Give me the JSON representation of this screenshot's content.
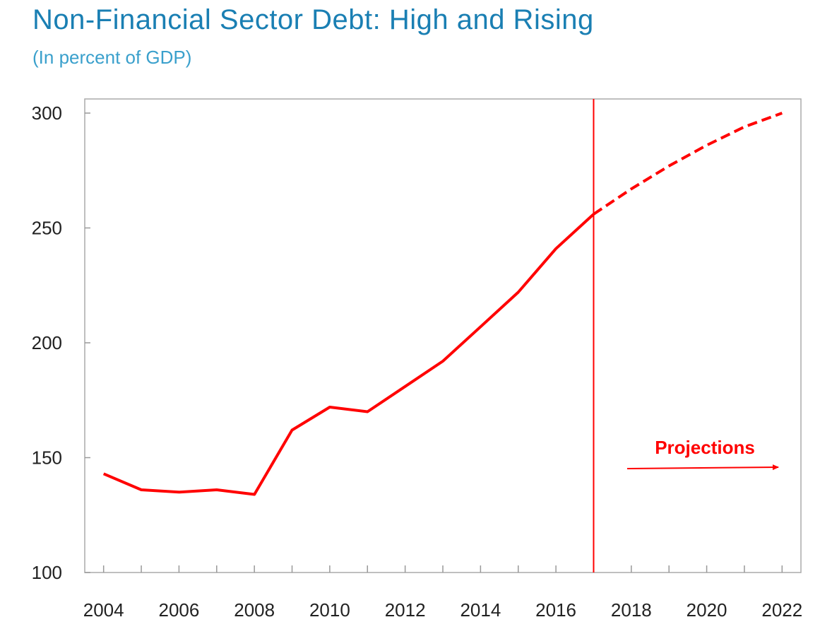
{
  "title": "Non-Financial Sector Debt: High and Rising",
  "subtitle": "(In percent of GDP)",
  "colors": {
    "title": "#1a7fb3",
    "subtitle": "#3aa0cc",
    "series": "#ff0000",
    "axis": "#999999"
  },
  "chart_data": {
    "type": "line",
    "title": "Non-Financial Sector Debt: High and Rising",
    "subtitle": "(In percent of GDP)",
    "xlabel": "",
    "ylabel": "",
    "ylim": [
      100,
      300
    ],
    "xlim": [
      2003.5,
      2022.5
    ],
    "y_ticks": [
      100,
      150,
      200,
      250,
      300
    ],
    "x_tick_labels": [
      "2004",
      "2006",
      "2008",
      "2010",
      "2012",
      "2014",
      "2016",
      "2018",
      "2020",
      "2022"
    ],
    "grid": false,
    "series": [
      {
        "style": "solid",
        "color": "#ff0000",
        "x": [
          2004,
          2005,
          2006,
          2007,
          2008,
          2009,
          2010,
          2011,
          2012,
          2013,
          2014,
          2015,
          2016,
          2017
        ],
        "y": [
          143,
          136,
          135,
          136,
          134,
          162,
          172,
          170,
          181,
          192,
          207,
          222,
          241,
          256
        ]
      },
      {
        "style": "dashed",
        "color": "#ff0000",
        "x": [
          2017,
          2018,
          2019,
          2020,
          2021,
          2022
        ],
        "y": [
          256,
          267,
          277,
          286,
          294,
          300
        ]
      }
    ],
    "vertical_line": {
      "x": 2017
    },
    "annotation": {
      "text": "Projections",
      "arrow": "right"
    }
  }
}
